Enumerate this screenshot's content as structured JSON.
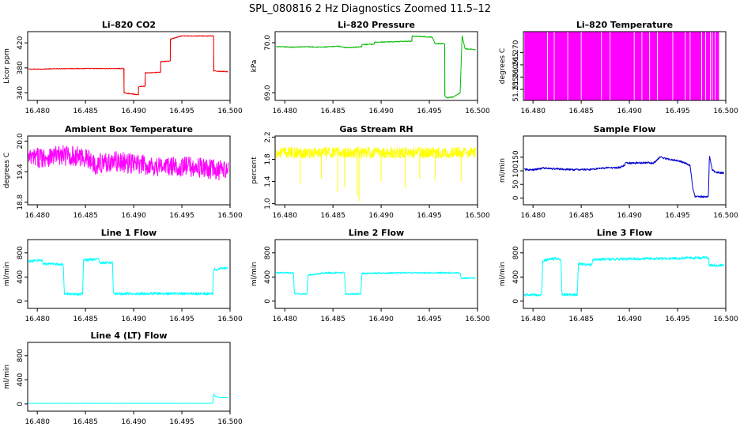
{
  "page": {
    "title": "SPL_080816  2 Hz Diagnostics Zoomed 11.5–12"
  },
  "chart_data": [
    {
      "type": "line",
      "title": "Li–820 CO2",
      "ylabel": "Licor ppm",
      "color": "#ee0000",
      "x": [
        16.4791,
        16.48,
        16.483,
        16.486,
        16.489,
        16.489,
        16.4905,
        16.4905,
        16.4912,
        16.4912,
        16.4928,
        16.4928,
        16.4938,
        16.4938,
        16.495,
        16.495,
        16.4983,
        16.4983,
        16.4998
      ],
      "y": [
        378,
        378,
        379,
        379,
        379,
        340,
        337,
        350,
        351,
        372,
        373,
        390,
        391,
        426,
        431,
        431,
        431,
        375,
        374
      ],
      "noise": 0.6,
      "xlim": [
        16.479,
        16.5
      ],
      "ylim": [
        328,
        438
      ],
      "xticks": [
        "16.480",
        "16.485",
        "16.490",
        "16.495",
        "16.500"
      ],
      "yticks": [
        "340",
        "380",
        "420"
      ]
    },
    {
      "type": "line",
      "title": "Li–820 Pressure",
      "ylabel": "kPa",
      "color": "#00bb00",
      "x": [
        16.4791,
        16.481,
        16.482,
        16.484,
        16.4855,
        16.4865,
        16.488,
        16.488,
        16.4893,
        16.4893,
        16.4915,
        16.4932,
        16.4932,
        16.4945,
        16.4953,
        16.4956,
        16.4966,
        16.4966,
        16.4968,
        16.4975,
        16.4982,
        16.4984,
        16.4987,
        16.4998
      ],
      "y": [
        69.92,
        69.91,
        69.92,
        69.91,
        69.93,
        69.9,
        69.92,
        69.96,
        69.97,
        70.01,
        70.02,
        70.03,
        70.13,
        70.12,
        70.11,
        69.98,
        69.98,
        68.95,
        68.9,
        68.92,
        69.0,
        70.15,
        69.88,
        69.86
      ],
      "noise": 0.008,
      "xlim": [
        16.479,
        16.5
      ],
      "ylim": [
        68.85,
        70.22
      ],
      "xticks": [
        "16.480",
        "16.485",
        "16.490",
        "16.495",
        "16.500"
      ],
      "yticks": [
        "69.0",
        "70.0"
      ]
    },
    {
      "type": "area",
      "title": "Li–820 Temperature",
      "ylabel": "degrees C",
      "color": "#ff00ff",
      "x_start": 16.4791,
      "x_end": 16.4993,
      "y_low": 51.25,
      "y_high": 51.28,
      "gaps": [
        16.4815,
        16.4822,
        16.4836,
        16.485,
        16.4871,
        16.488,
        16.4905,
        16.4913,
        16.4921,
        16.4929,
        16.4945,
        16.4958,
        16.4963,
        16.4975,
        16.4979,
        16.4984,
        16.4986,
        16.4989
      ],
      "xlim": [
        16.479,
        16.5
      ],
      "ylim": [
        51.2505,
        51.2785
      ],
      "xticks": [
        "16.480",
        "16.485",
        "16.490",
        "16.495",
        "16.500"
      ],
      "yticks": [
        "51.255",
        "51.260",
        "51.265",
        "51.270"
      ]
    },
    {
      "type": "line",
      "title": "Ambient Box Temperature",
      "ylabel": "degrees C",
      "color": "#ff00ff",
      "x": [
        16.4791,
        16.481,
        16.483,
        16.485,
        16.486,
        16.488,
        16.49,
        16.493,
        16.496,
        16.498,
        16.4998
      ],
      "y": [
        19.65,
        19.7,
        19.72,
        19.68,
        19.55,
        19.6,
        19.55,
        19.5,
        19.5,
        19.45,
        19.4
      ],
      "noise": 0.2,
      "xlim": [
        16.479,
        16.5
      ],
      "ylim": [
        18.75,
        20.1
      ],
      "xticks": [
        "16.480",
        "16.485",
        "16.490",
        "16.495",
        "16.500"
      ],
      "yticks": [
        "18.8",
        "19.4",
        "20.0"
      ]
    },
    {
      "type": "line",
      "title": "Gas Stream RH",
      "ylabel": "percent",
      "color": "#ffff00",
      "x": [
        16.4791,
        16.4998
      ],
      "y": [
        1.92,
        1.92
      ],
      "noise": 0.1,
      "spikes": [
        [
          16.4816,
          1.35
        ],
        [
          16.4838,
          1.45
        ],
        [
          16.4855,
          1.2
        ],
        [
          16.4862,
          1.3
        ],
        [
          16.4875,
          1.15
        ],
        [
          16.4877,
          1.05
        ],
        [
          16.49,
          1.4
        ],
        [
          16.4925,
          1.28
        ],
        [
          16.494,
          1.45
        ],
        [
          16.4956,
          1.42
        ],
        [
          16.4983,
          1.4
        ]
      ],
      "xlim": [
        16.479,
        16.5
      ],
      "ylim": [
        0.98,
        2.22
      ],
      "xticks": [
        "16.480",
        "16.485",
        "16.490",
        "16.495",
        "16.500"
      ],
      "yticks": [
        "1.0",
        "1.4",
        "1.8",
        "2.2"
      ]
    },
    {
      "type": "line",
      "title": "Sample Flow",
      "ylabel": "ml/min",
      "color": "#0000cc",
      "x": [
        16.4791,
        16.48,
        16.481,
        16.482,
        16.484,
        16.486,
        16.487,
        16.489,
        16.4895,
        16.4896,
        16.492,
        16.4925,
        16.4932,
        16.4945,
        16.4947,
        16.4955,
        16.4963,
        16.4966,
        16.4968,
        16.4982,
        16.4983,
        16.4986,
        16.499,
        16.4998
      ],
      "y": [
        105,
        103,
        110,
        108,
        104,
        105,
        110,
        112,
        120,
        128,
        130,
        128,
        150,
        140,
        140,
        132,
        120,
        30,
        5,
        5,
        155,
        102,
        95,
        92
      ],
      "noise": 3.5,
      "xlim": [
        16.479,
        16.5
      ],
      "ylim": [
        -25,
        228
      ],
      "xticks": [
        "16.480",
        "16.485",
        "16.490",
        "16.495",
        "16.500"
      ],
      "yticks": [
        "0",
        "50",
        "100",
        "150"
      ]
    },
    {
      "type": "line",
      "title": "Line 1 Flow",
      "ylabel": "ml/min",
      "color": "#00ffff",
      "x": [
        16.4791,
        16.4805,
        16.4806,
        16.4827,
        16.4828,
        16.4847,
        16.4848,
        16.4864,
        16.4865,
        16.4878,
        16.4879,
        16.49,
        16.495,
        16.4982,
        16.4983,
        16.4998
      ],
      "y": [
        660,
        680,
        620,
        610,
        120,
        120,
        680,
        700,
        630,
        640,
        120,
        125,
        125,
        125,
        520,
        560
      ],
      "noise": 22,
      "xlim": [
        16.479,
        16.5
      ],
      "ylim": [
        -120,
        1020
      ],
      "xticks": [
        "16.480",
        "16.485",
        "16.490",
        "16.495",
        "16.500"
      ],
      "yticks": [
        "0",
        "400",
        "800"
      ]
    },
    {
      "type": "line",
      "title": "Line 2 Flow",
      "ylabel": "ml/min",
      "color": "#00ffff",
      "x": [
        16.4791,
        16.4809,
        16.481,
        16.4823,
        16.4824,
        16.4842,
        16.4843,
        16.4862,
        16.4863,
        16.4879,
        16.488,
        16.492,
        16.4982,
        16.4983,
        16.4998
      ],
      "y": [
        470,
        470,
        120,
        120,
        430,
        470,
        470,
        470,
        120,
        120,
        460,
        470,
        470,
        380,
        385
      ],
      "noise": 12,
      "xlim": [
        16.479,
        16.5
      ],
      "ylim": [
        -120,
        1020
      ],
      "xticks": [
        "16.480",
        "16.485",
        "16.490",
        "16.495",
        "16.500"
      ],
      "yticks": [
        "0",
        "400",
        "800"
      ]
    },
    {
      "type": "line",
      "title": "Line 3 Flow",
      "ylabel": "ml/min",
      "color": "#00ffff",
      "x": [
        16.4791,
        16.4809,
        16.481,
        16.4815,
        16.4825,
        16.4829,
        16.483,
        16.4846,
        16.4847,
        16.4861,
        16.4862,
        16.49,
        16.495,
        16.4982,
        16.4983,
        16.4998
      ],
      "y": [
        100,
        105,
        660,
        690,
        710,
        690,
        110,
        110,
        620,
        600,
        690,
        700,
        710,
        720,
        590,
        600
      ],
      "noise": 22,
      "xlim": [
        16.479,
        16.5
      ],
      "ylim": [
        -120,
        1020
      ],
      "xticks": [
        "16.480",
        "16.485",
        "16.490",
        "16.495",
        "16.500"
      ],
      "yticks": [
        "0",
        "400",
        "800"
      ]
    },
    {
      "type": "line",
      "title": "Line 4 (LT) Flow",
      "ylabel": "ml/min",
      "color": "#00ffff",
      "x": [
        16.4791,
        16.485,
        16.492,
        16.4982,
        16.4983,
        16.4985,
        16.499,
        16.4998
      ],
      "y": [
        10,
        10,
        10,
        10,
        165,
        120,
        110,
        110
      ],
      "noise": 1.5,
      "xlim": [
        16.479,
        16.5
      ],
      "ylim": [
        -120,
        1020
      ],
      "xticks": [
        "16.480",
        "16.485",
        "16.490",
        "16.495",
        "16.500"
      ],
      "yticks": [
        "0",
        "400",
        "800"
      ]
    }
  ]
}
